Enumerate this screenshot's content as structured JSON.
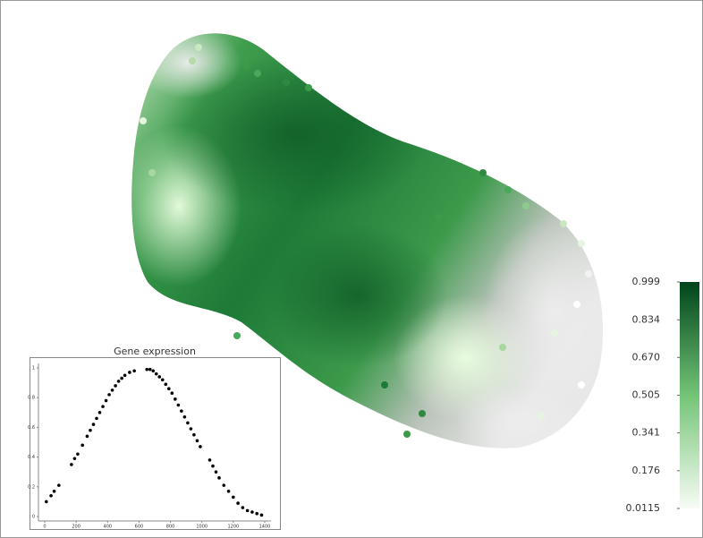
{
  "chart_data": [
    {
      "type": "colorbar",
      "colors": [
        "#f7fcf5",
        "#74c476",
        "#00441b"
      ],
      "ylim": [
        0.0115,
        0.999
      ],
      "yticks": [
        0.0115,
        0.176,
        0.341,
        0.505,
        {
          "value": 0.67,
          "label": "0.670"
        },
        0.834,
        0.999
      ]
    },
    {
      "type": "scatter",
      "title": "Gene expression",
      "color": "#000000",
      "x": [
        10,
        40,
        60,
        90,
        170,
        190,
        210,
        240,
        270,
        290,
        310,
        330,
        350,
        370,
        390,
        410,
        430,
        450,
        470,
        490,
        510,
        540,
        570,
        650,
        670,
        690,
        710,
        730,
        750,
        770,
        790,
        810,
        830,
        850,
        870,
        890,
        910,
        930,
        950,
        970,
        990,
        1050,
        1070,
        1090,
        1110,
        1140,
        1170,
        1200,
        1230,
        1260,
        1290,
        1320,
        1350,
        1380
      ],
      "values": [
        0.1,
        0.14,
        0.17,
        0.21,
        0.35,
        0.39,
        0.42,
        0.48,
        0.54,
        0.58,
        0.62,
        0.66,
        0.7,
        0.74,
        0.78,
        0.82,
        0.85,
        0.88,
        0.91,
        0.93,
        0.95,
        0.97,
        0.98,
        0.99,
        0.99,
        0.98,
        0.96,
        0.94,
        0.92,
        0.89,
        0.86,
        0.83,
        0.79,
        0.75,
        0.71,
        0.67,
        0.63,
        0.59,
        0.55,
        0.51,
        0.47,
        0.38,
        0.34,
        0.3,
        0.26,
        0.21,
        0.17,
        0.13,
        0.09,
        0.06,
        0.04,
        0.03,
        0.02,
        0.01
      ],
      "xlim": [
        -40,
        1440
      ],
      "ylim": [
        -0.03,
        1.03
      ],
      "xticks": [
        0,
        200,
        400,
        600,
        800,
        1000,
        1200,
        1400
      ],
      "yticks": [
        0,
        0.2,
        0.4,
        0.6,
        0.8,
        1
      ]
    }
  ]
}
